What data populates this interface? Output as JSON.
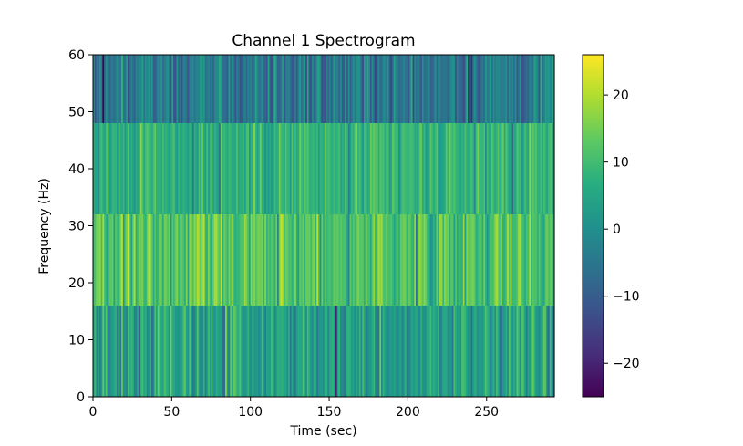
{
  "chart_data": {
    "type": "heatmap",
    "title": "Channel 1 Spectrogram",
    "xlabel": "Time (sec)",
    "ylabel": "Frequency (Hz)",
    "xlim": [
      0,
      293
    ],
    "ylim": [
      0,
      60
    ],
    "x_ticks": [
      0,
      50,
      100,
      150,
      200,
      250
    ],
    "y_ticks": [
      0,
      10,
      20,
      30,
      40,
      50,
      60
    ],
    "frequency_bands_hz": [
      [
        0,
        16
      ],
      [
        16,
        32
      ],
      [
        32,
        48
      ],
      [
        48,
        60
      ]
    ],
    "band_mean_values": [
      4,
      12,
      8,
      -4
    ],
    "band_spread": [
      7,
      6,
      5,
      7
    ],
    "time_bin_count": 293,
    "colormap": "viridis",
    "colorbar": {
      "min": -25,
      "max": 26,
      "ticks": [
        -20,
        -10,
        0,
        10,
        20
      ],
      "tick_labels": [
        "−20",
        "−10",
        "0",
        "10",
        "20"
      ]
    }
  }
}
